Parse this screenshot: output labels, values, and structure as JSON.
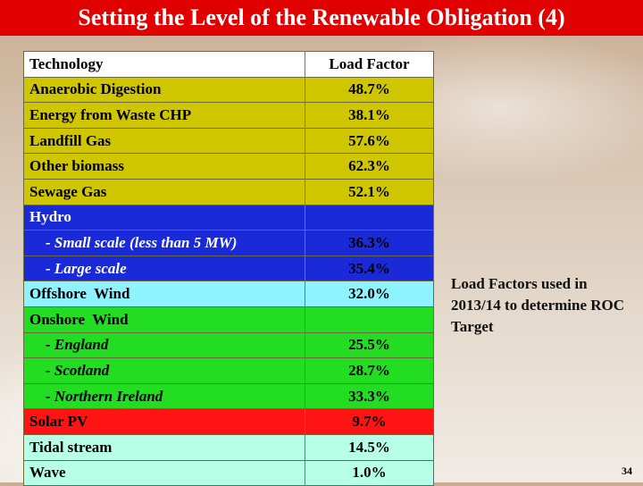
{
  "title": "Setting the Level of the Renewable Obligation (4)",
  "table": {
    "headers": [
      "Technology",
      "Load Factor"
    ],
    "rows": [
      {
        "label": "Anaerobic Digestion",
        "value": "48.7%"
      },
      {
        "label": "Energy from Waste CHP",
        "value": "38.1%"
      },
      {
        "label": "Landfill Gas",
        "value": "57.6%"
      },
      {
        "label": "Other biomass",
        "value": "62.3%"
      },
      {
        "label": "Sewage Gas",
        "value": "52.1%"
      },
      {
        "label": "Hydro",
        "value": ""
      },
      {
        "label": "- Small scale (less than 5 MW)",
        "value": "36.3%"
      },
      {
        "label": "- Large scale",
        "value": "35.4%"
      },
      {
        "label": "Offshore  Wind",
        "value": "32.0%"
      },
      {
        "label": "Onshore  Wind",
        "value": ""
      },
      {
        "label": "- England",
        "value": "25.5%"
      },
      {
        "label": "- Scotland",
        "value": "28.7%"
      },
      {
        "label": "- Northern Ireland",
        "value": "33.3%"
      },
      {
        "label": "Solar PV",
        "value": "9.7%"
      },
      {
        "label": "Tidal stream",
        "value": "14.5%"
      },
      {
        "label": "Wave",
        "value": "1.0%"
      }
    ]
  },
  "colors": {
    "title_bar": "#e10000",
    "bioenergy": "#cfc600",
    "hydro": "#1a2ad8",
    "offshore": "#8ef3ff",
    "onshore": "#22dd22",
    "solar": "#ff1313",
    "marine": "#b7ffe6"
  },
  "note": "Load Factors used in 2013/14 to determine ROC Target",
  "slide_number": "34"
}
